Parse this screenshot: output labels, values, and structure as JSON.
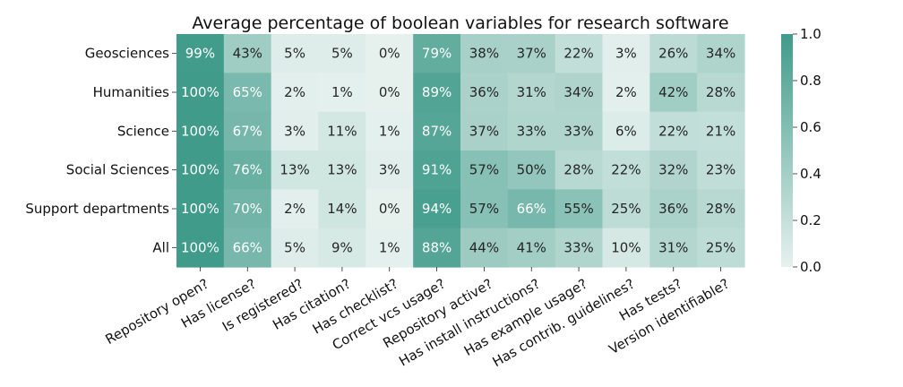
{
  "chart_data": {
    "type": "heatmap",
    "title": "Average percentage of boolean variables for research software",
    "rows": [
      "Geosciences",
      "Humanities",
      "Science",
      "Social Sciences",
      "Support departments",
      "All"
    ],
    "columns": [
      "Repository open?",
      "Has license?",
      "Is registered?",
      "Has citation?",
      "Has checklist?",
      "Correct vcs usage?",
      "Repository active?",
      "Has install instructions?",
      "Has example usage?",
      "Has contrib. guidelines?",
      "Has tests?",
      "Version identifiable?"
    ],
    "values": [
      [
        0.99,
        0.43,
        0.05,
        0.05,
        0.0,
        0.79,
        0.38,
        0.37,
        0.22,
        0.03,
        0.26,
        0.34
      ],
      [
        1.0,
        0.65,
        0.02,
        0.01,
        0.0,
        0.89,
        0.36,
        0.31,
        0.34,
        0.02,
        0.42,
        0.28
      ],
      [
        1.0,
        0.67,
        0.03,
        0.11,
        0.01,
        0.87,
        0.37,
        0.33,
        0.33,
        0.06,
        0.22,
        0.21
      ],
      [
        1.0,
        0.76,
        0.13,
        0.13,
        0.03,
        0.91,
        0.57,
        0.5,
        0.28,
        0.22,
        0.32,
        0.23
      ],
      [
        1.0,
        0.7,
        0.02,
        0.14,
        0.0,
        0.94,
        0.57,
        0.66,
        0.55,
        0.25,
        0.36,
        0.28
      ],
      [
        1.0,
        0.66,
        0.05,
        0.09,
        0.01,
        0.88,
        0.44,
        0.41,
        0.33,
        0.1,
        0.31,
        0.25
      ]
    ],
    "labels": [
      [
        "99%",
        "43%",
        "5%",
        "5%",
        "0%",
        "79%",
        "38%",
        "37%",
        "22%",
        "3%",
        "26%",
        "34%"
      ],
      [
        "100%",
        "65%",
        "2%",
        "1%",
        "0%",
        "89%",
        "36%",
        "31%",
        "34%",
        "2%",
        "42%",
        "28%"
      ],
      [
        "100%",
        "67%",
        "3%",
        "11%",
        "1%",
        "87%",
        "37%",
        "33%",
        "33%",
        "6%",
        "22%",
        "21%"
      ],
      [
        "100%",
        "76%",
        "13%",
        "13%",
        "3%",
        "91%",
        "57%",
        "50%",
        "28%",
        "22%",
        "32%",
        "23%"
      ],
      [
        "100%",
        "70%",
        "2%",
        "14%",
        "0%",
        "94%",
        "57%",
        "66%",
        "55%",
        "25%",
        "36%",
        "28%"
      ],
      [
        "100%",
        "66%",
        "5%",
        "9%",
        "1%",
        "88%",
        "44%",
        "41%",
        "33%",
        "10%",
        "31%",
        "25%"
      ]
    ],
    "colorbar": {
      "range": [
        0.0,
        1.0
      ],
      "ticks": [
        "0.0",
        "0.2",
        "0.4",
        "0.6",
        "0.8",
        "1.0"
      ],
      "low_color": "#e6f1ee",
      "high_color": "#409b8a"
    }
  }
}
